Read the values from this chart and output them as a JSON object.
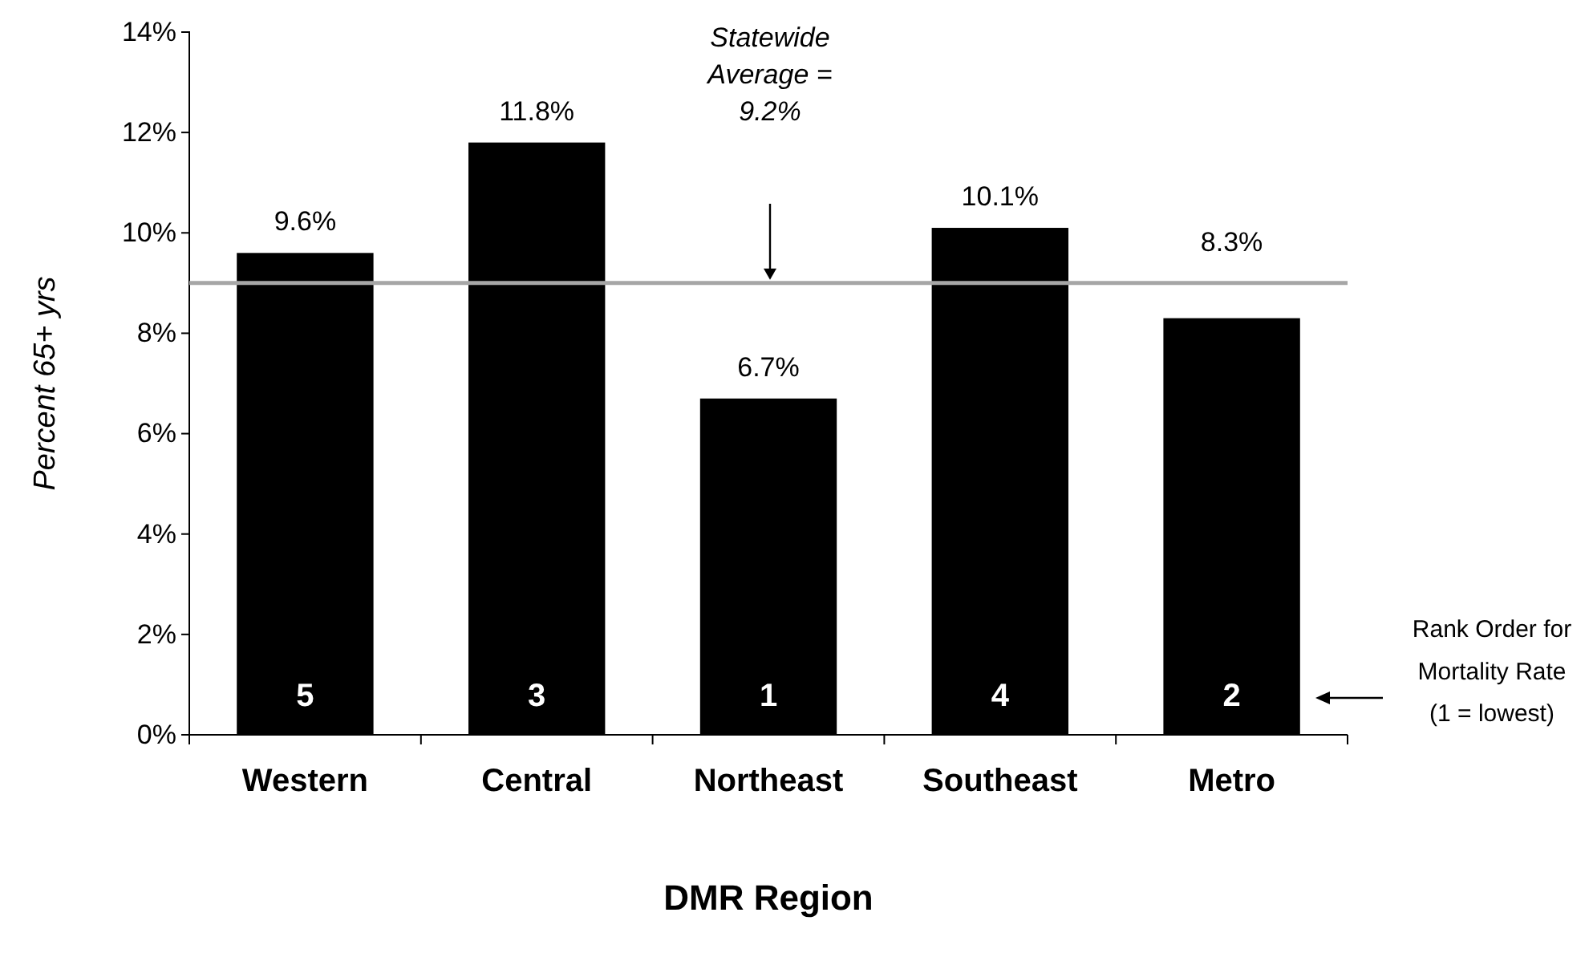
{
  "chart_data": {
    "type": "bar",
    "xlabel": "DMR Region",
    "ylabel": "Percent  65+ yrs",
    "categories": [
      "Western",
      "Central",
      "Northeast",
      "Southeast",
      "Metro"
    ],
    "values": [
      9.6,
      11.8,
      6.7,
      10.1,
      8.3
    ],
    "value_labels": [
      "9.6%",
      "11.8%",
      "6.7%",
      "10.1%",
      "8.3%"
    ],
    "color": "#000000",
    "ylim": [
      0,
      14
    ],
    "yticks": [
      {
        "value": 0,
        "label": "0%"
      },
      {
        "value": 2,
        "label": "2%"
      },
      {
        "value": 4,
        "label": "4%"
      },
      {
        "value": 6,
        "label": "6%"
      },
      {
        "value": 8,
        "label": "8%"
      },
      {
        "value": 10,
        "label": "10%"
      },
      {
        "value": 12,
        "label": "12%"
      },
      {
        "value": 14,
        "label": "14%"
      }
    ],
    "ref_lines": [
      {
        "axis": "y",
        "value": 9.0,
        "color": "#a6a6a6"
      }
    ],
    "annotations": [
      "5",
      "3",
      "1",
      "4",
      "2",
      "Statewide Average = 9.2%",
      "Rank Order for Mortality Rate (1 = lowest)"
    ],
    "grid": false
  }
}
